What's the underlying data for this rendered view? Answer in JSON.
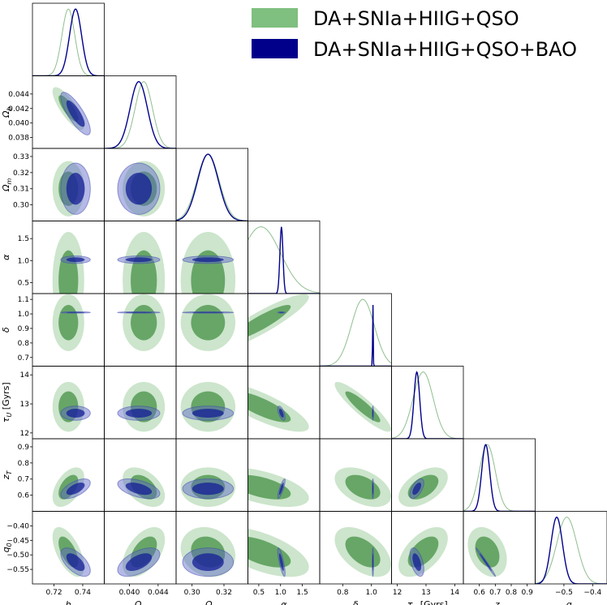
{
  "chart_data": {
    "type": "corner",
    "parameters": [
      {
        "key": "h",
        "label": "h",
        "range": [
          0.705,
          0.755
        ],
        "ticks": [
          0.72,
          0.74
        ],
        "tick_labels": [
          "0.72",
          "0.74"
        ]
      },
      {
        "key": "ob",
        "label": "Ω_b",
        "range": [
          0.0365,
          0.0465
        ],
        "ticks": [
          0.038,
          0.04,
          0.042,
          0.044
        ],
        "tick_labels": [
          "0.038",
          "0.040",
          "0.042",
          "0.044"
        ],
        "bottom_ticks": [
          0.04,
          0.044
        ],
        "bottom_tick_labels": [
          "0.040",
          "0.044"
        ]
      },
      {
        "key": "om",
        "label": "Ω_m",
        "range": [
          0.29,
          0.335
        ],
        "ticks": [
          0.3,
          0.31,
          0.32,
          0.33
        ],
        "tick_labels": [
          "0.30",
          "0.31",
          "0.32",
          "0.33"
        ],
        "bottom_ticks": [
          0.3,
          0.32
        ],
        "bottom_tick_labels": [
          "0.30",
          "0.32"
        ]
      },
      {
        "key": "alpha",
        "label": "α",
        "range": [
          0.25,
          1.9
        ],
        "ticks": [
          0.5,
          1.0,
          1.5
        ],
        "tick_labels": [
          "0.5",
          "1.0",
          "1.5"
        ]
      },
      {
        "key": "delta",
        "label": "δ",
        "range": [
          0.64,
          1.14
        ],
        "ticks": [
          0.7,
          0.8,
          0.9,
          1.0,
          1.1
        ],
        "tick_labels": [
          "0.7",
          "0.8",
          "0.9",
          "1.0",
          "1.1"
        ],
        "bottom_ticks": [
          0.8,
          1.0
        ],
        "bottom_tick_labels": [
          "0.8",
          "1.0"
        ]
      },
      {
        "key": "tau",
        "label": "τ_U [Gyrs]",
        "range": [
          11.8,
          14.3
        ],
        "ticks": [
          12,
          13,
          14
        ],
        "tick_labels": [
          "12",
          "13",
          "14"
        ]
      },
      {
        "key": "zt",
        "label": "z_T",
        "range": [
          0.5,
          0.95
        ],
        "ticks": [
          0.6,
          0.7,
          0.8,
          0.9
        ],
        "tick_labels": [
          "0.6",
          "0.7",
          "0.8",
          "0.9"
        ]
      },
      {
        "key": "q0",
        "label": "q_0",
        "range": [
          -0.6,
          -0.35
        ],
        "ticks": [
          -0.55,
          -0.5,
          -0.45,
          -0.4
        ],
        "tick_labels": [
          "−0.55",
          "−0.50",
          "−0.45",
          "−0.40"
        ],
        "bottom_ticks": [
          -0.5,
          -0.4
        ],
        "bottom_tick_labels": [
          "−0.5",
          "−0.4"
        ]
      }
    ],
    "series": [
      {
        "name": "DA+SNIa+HIIG+QSO",
        "color": "#6aaa6a",
        "mean": {
          "h": 0.73,
          "ob": 0.042,
          "om": 0.31,
          "alpha": 0.55,
          "delta": 0.94,
          "tau": 12.9,
          "zt": 0.65,
          "q0": -0.49
        },
        "sigma": {
          "h": 0.0045,
          "ob": 0.0012,
          "om": 0.007,
          "alpha": 0.45,
          "delta": 0.08,
          "tau": 0.35,
          "zt": 0.05,
          "q0": 0.035
        },
        "corr": {
          "h,ob": -0.8,
          "alpha,delta": 0.9,
          "alpha,tau": -0.8,
          "delta,tau": -0.9,
          "h,zt": 0.5,
          "ob,zt": -0.45,
          "h,q0": -0.6,
          "ob,q0": 0.5,
          "om,q0": -0.15,
          "alpha,zt": -0.55,
          "delta,zt": -0.45,
          "tau,zt": 0.5,
          "alpha,q0": -0.6,
          "delta,q0": -0.5,
          "tau,q0": 0.55,
          "zt,q0": -0.3
        }
      },
      {
        "name": "DA+SNIa+HIIG+QSO+BAO",
        "color": "#00008b",
        "mean": {
          "h": 0.735,
          "ob": 0.0413,
          "om": 0.31,
          "alpha": 1.02,
          "delta": 1.01,
          "tau": 12.68,
          "zt": 0.64,
          "q0": -0.525
        },
        "sigma": {
          "h": 0.0042,
          "ob": 0.0012,
          "om": 0.0065,
          "alpha": 0.035,
          "delta": 0.002,
          "tau": 0.1,
          "zt": 0.025,
          "q0": 0.02
        },
        "corr": {
          "h,ob": -0.8,
          "h,zt": 0.6,
          "ob,zt": -0.5,
          "h,q0": -0.6,
          "ob,q0": 0.55,
          "alpha,zt": 0.85,
          "alpha,q0": -0.8,
          "tau,zt": 0.6,
          "tau,q0": -0.5,
          "zt,q0": -0.99,
          "alpha,tau": -0.6
        }
      }
    ],
    "legend": {
      "position": "top-right",
      "entries": [
        "DA+SNIa+HIIG+QSO",
        "DA+SNIa+HIIG+QSO+BAO"
      ]
    }
  }
}
